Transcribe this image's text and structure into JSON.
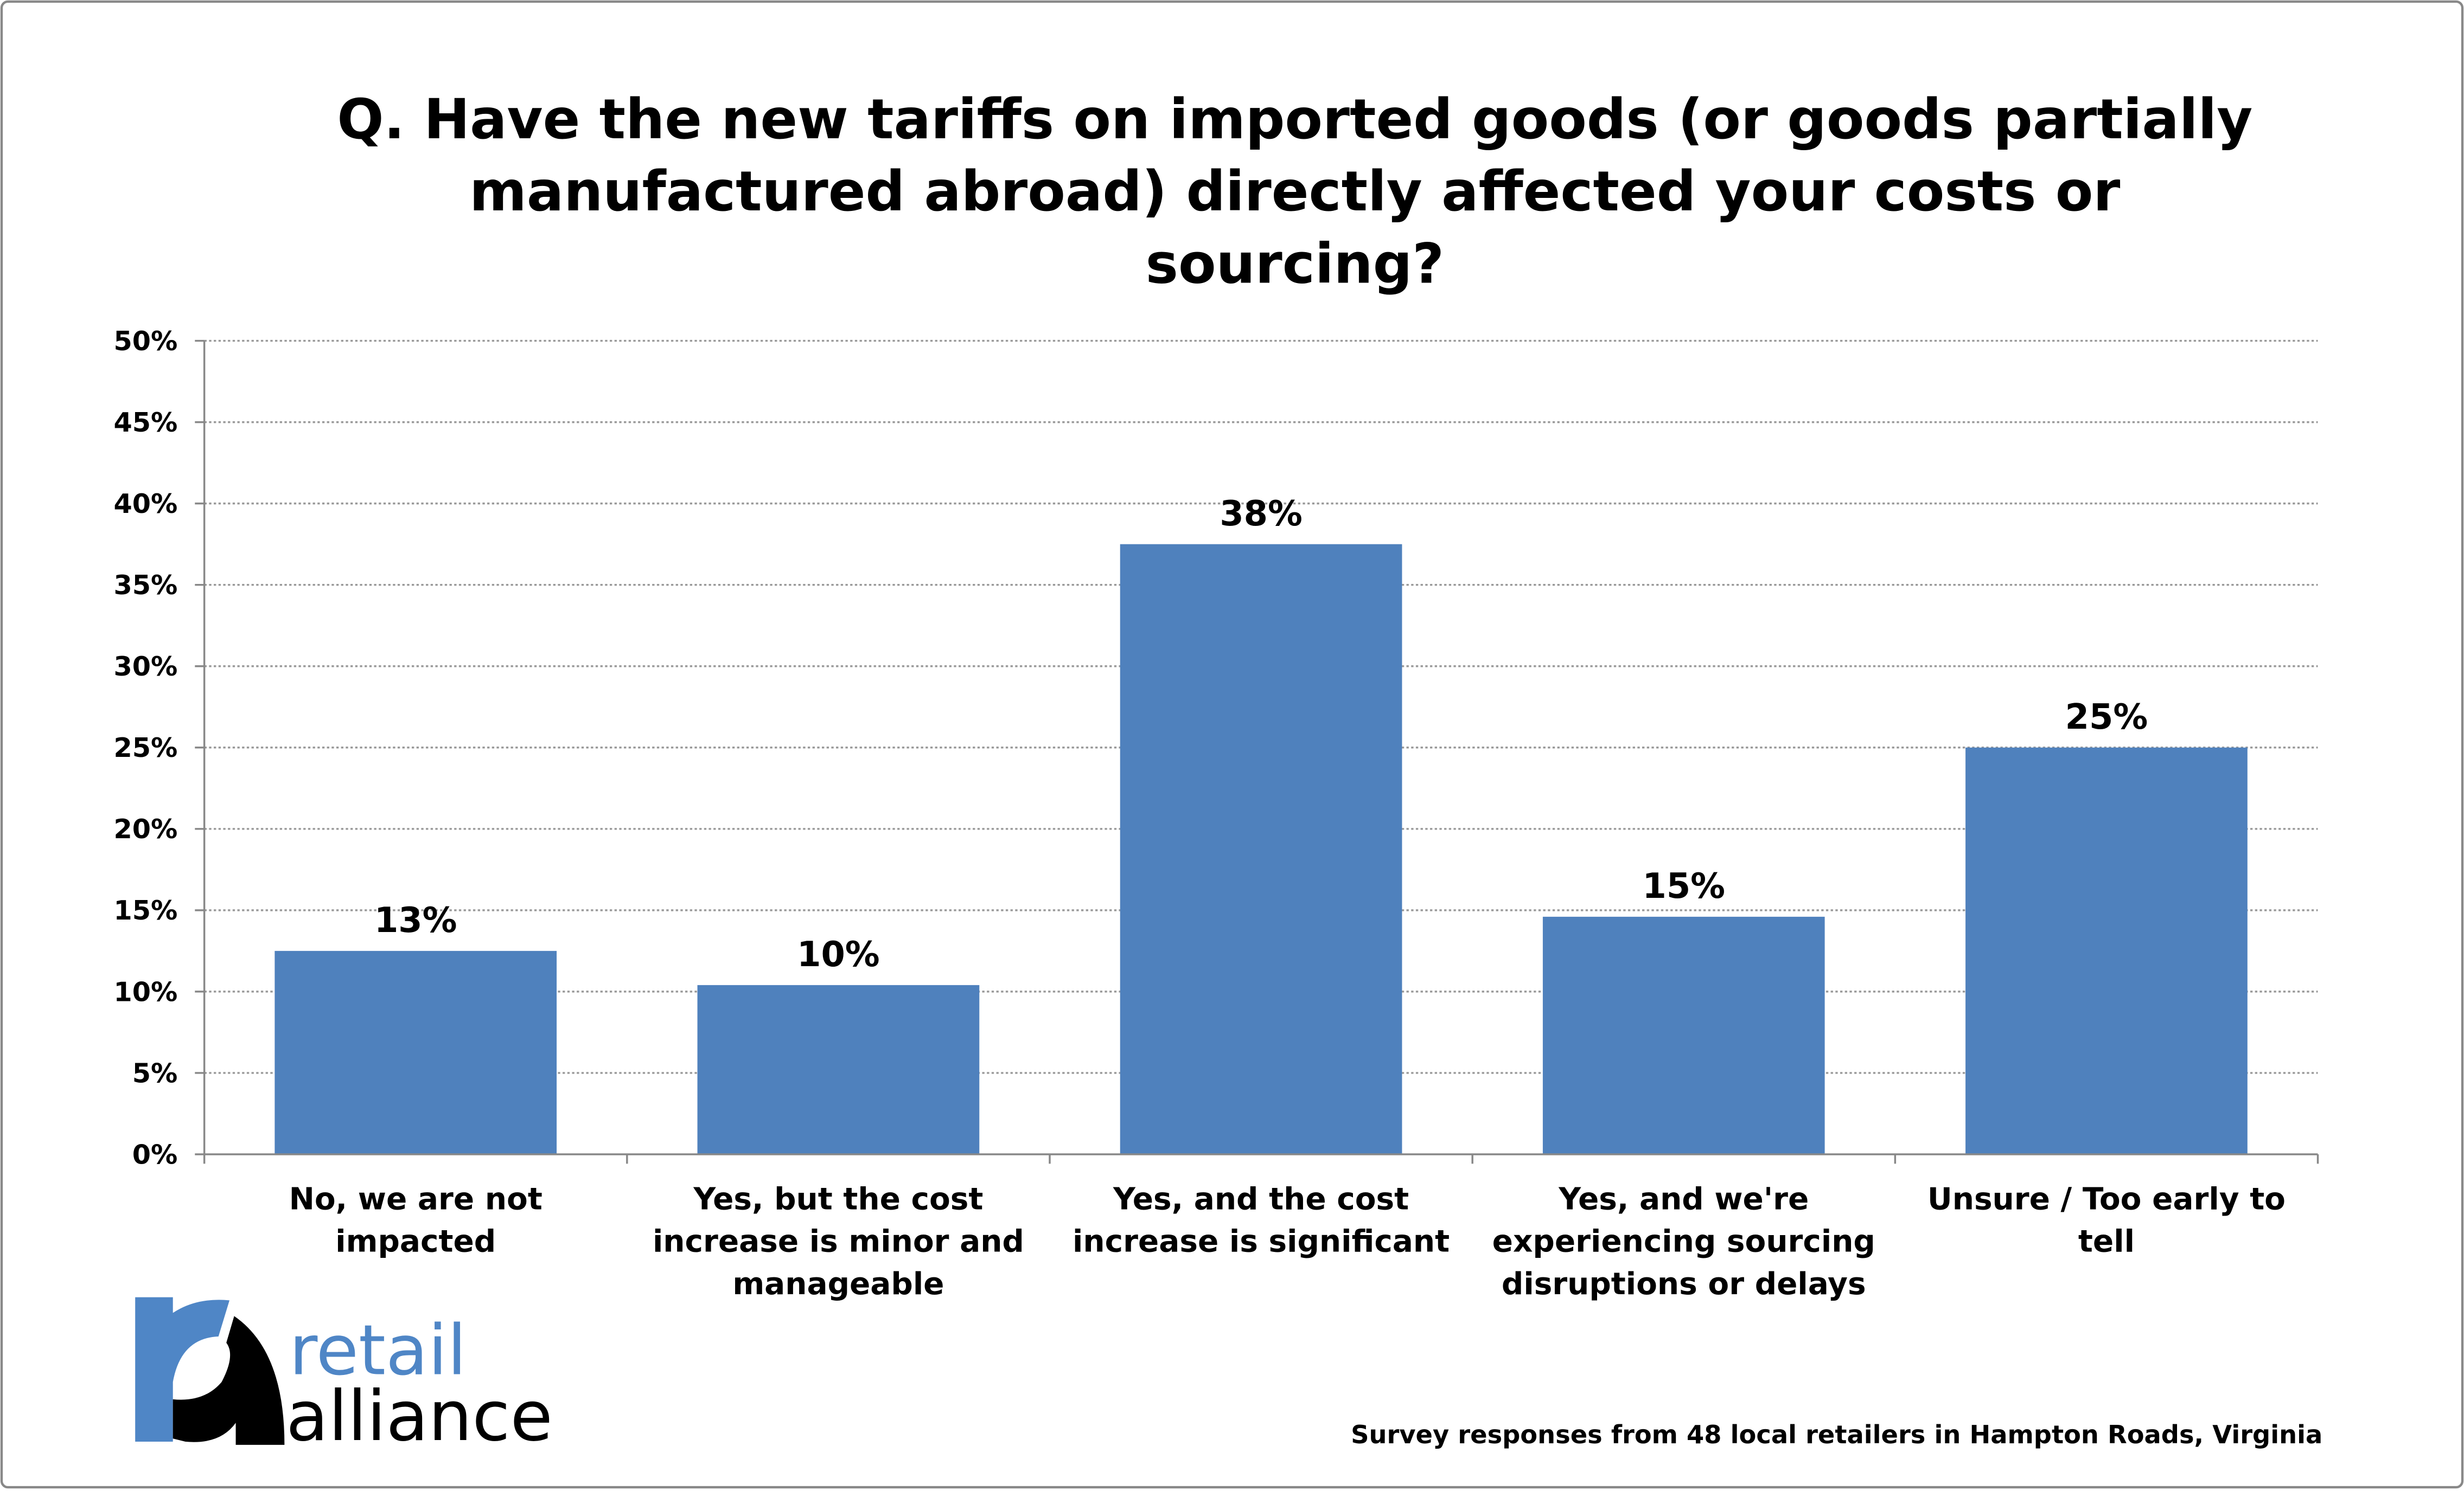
{
  "chart_data": {
    "type": "bar",
    "title": "Q. Have the new tariffs on imported goods (or goods partially manufactured abroad) directly affected your costs or sourcing?",
    "title_lines": [
      "Q. Have the new tariffs on imported goods (or goods partially",
      "manufactured abroad) directly affected your costs or",
      "sourcing?"
    ],
    "categories": [
      "No, we are not impacted",
      "Yes, but the cost increase is minor and manageable",
      "Yes, and the cost increase is significant",
      "Yes, and we're experiencing sourcing disruptions or delays",
      "Unsure / Too early to tell"
    ],
    "category_lines": [
      [
        "No, we are not",
        "impacted"
      ],
      [
        "Yes, but the cost",
        "increase is minor and",
        "manageable"
      ],
      [
        "Yes, and the cost",
        "increase is significant"
      ],
      [
        "Yes, and we're",
        "experiencing sourcing",
        "disruptions or delays"
      ],
      [
        "Unsure / Too early to",
        "tell"
      ]
    ],
    "values": [
      12.5,
      10.4,
      37.5,
      14.6,
      25.0
    ],
    "data_labels": [
      "13%",
      "10%",
      "38%",
      "15%",
      "25%"
    ],
    "xlabel": "",
    "ylabel": "",
    "ylim": [
      0,
      50
    ],
    "y_ticks": [
      "0%",
      "5%",
      "10%",
      "15%",
      "20%",
      "25%",
      "30%",
      "35%",
      "40%",
      "45%",
      "50%"
    ],
    "grid": "horizontal dotted",
    "legend": "none",
    "bar_color": "#4f81bd"
  },
  "footnote": "Survey responses from 48 local retailers in Hampton Roads, Virginia",
  "logo": {
    "line1": "retail",
    "line2": "alliance",
    "blue": "#4f86c6",
    "black": "#000000"
  }
}
